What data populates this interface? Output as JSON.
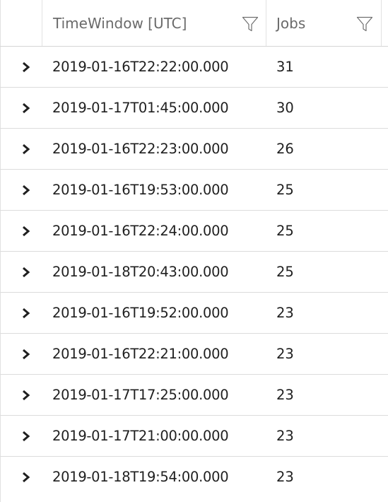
{
  "header": {
    "time_label": "TimeWindow [UTC]",
    "jobs_label": "Jobs",
    "filter_icon": "filter-icon"
  },
  "rows": [
    {
      "time": "2019-01-16T22:22:00.000",
      "jobs": "31"
    },
    {
      "time": "2019-01-17T01:45:00.000",
      "jobs": "30"
    },
    {
      "time": "2019-01-16T22:23:00.000",
      "jobs": "26"
    },
    {
      "time": "2019-01-16T19:53:00.000",
      "jobs": "25"
    },
    {
      "time": "2019-01-16T22:24:00.000",
      "jobs": "25"
    },
    {
      "time": "2019-01-18T20:43:00.000",
      "jobs": "25"
    },
    {
      "time": "2019-01-16T19:52:00.000",
      "jobs": "23"
    },
    {
      "time": "2019-01-16T22:21:00.000",
      "jobs": "23"
    },
    {
      "time": "2019-01-17T17:25:00.000",
      "jobs": "23"
    },
    {
      "time": "2019-01-17T21:00:00.000",
      "jobs": "23"
    },
    {
      "time": "2019-01-18T19:54:00.000",
      "jobs": "23"
    }
  ],
  "row_icon": "chevron-right-icon",
  "colors": {
    "header_text": "#6a6a6a",
    "cell_text": "#1f1f1f",
    "border": "#dcdcdc"
  }
}
